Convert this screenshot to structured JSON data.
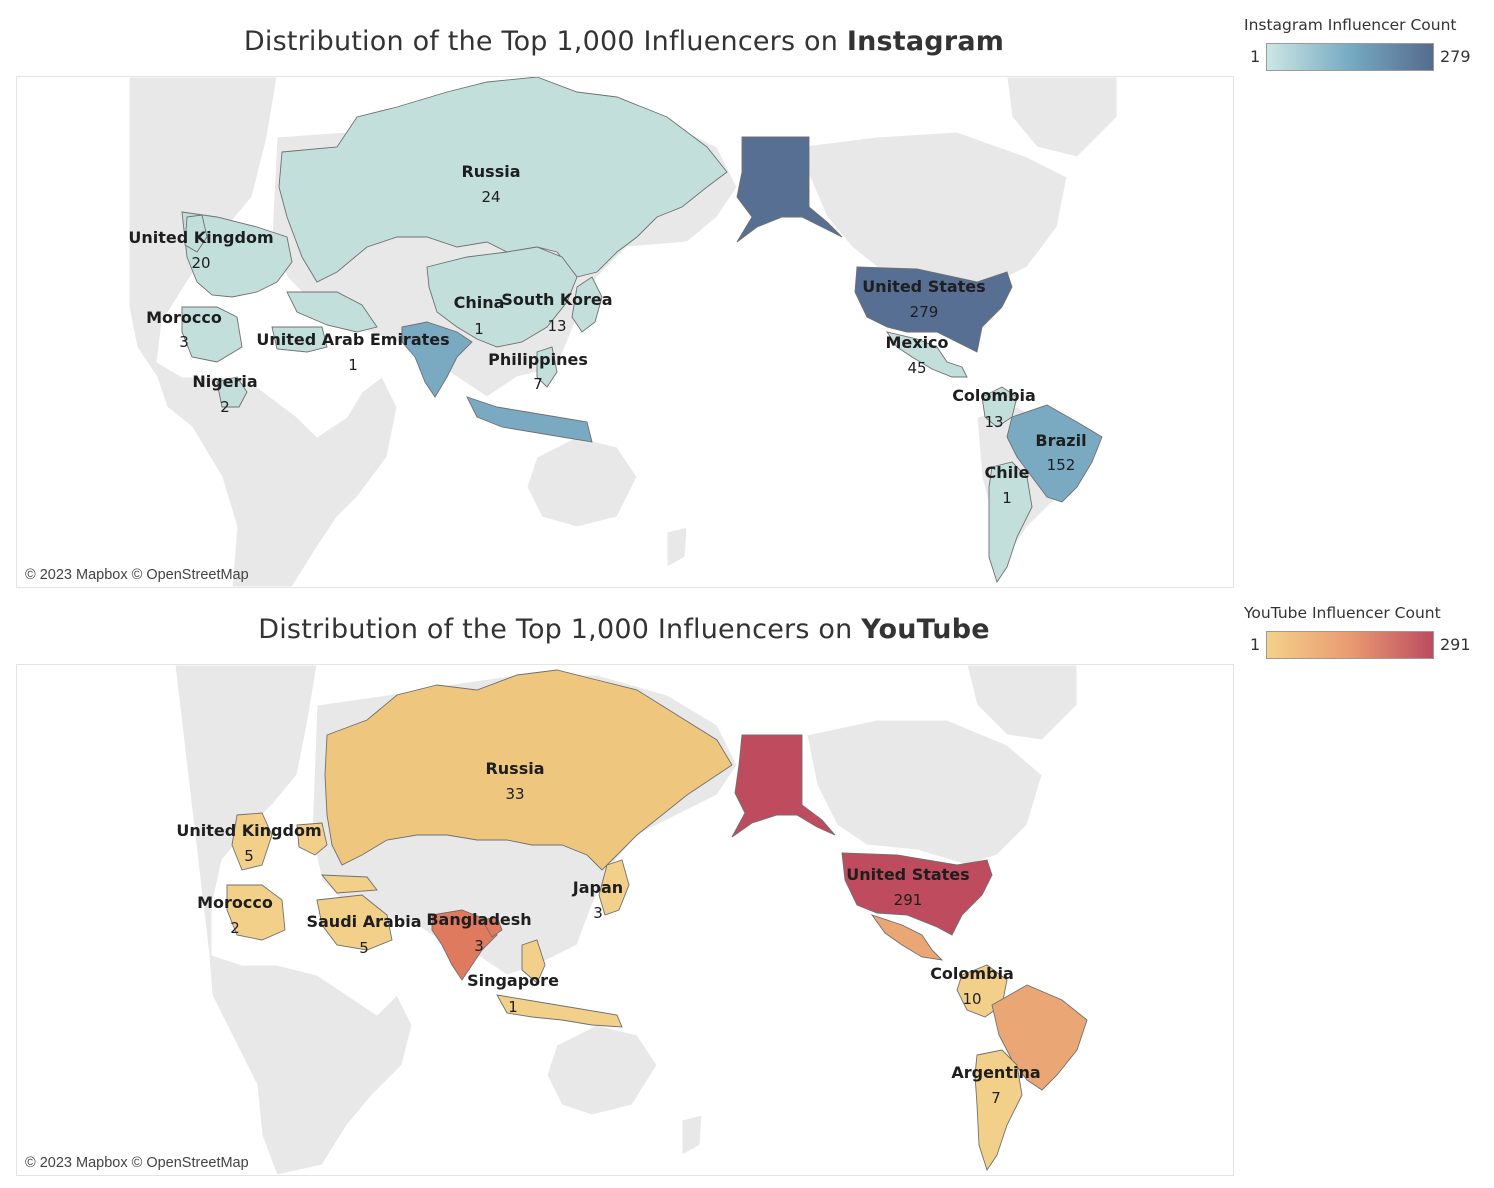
{
  "panels": [
    {
      "title_prefix": "Distribution of the Top 1,000 Influencers on ",
      "title_bold": "Instagram",
      "attribution": "© 2023 Mapbox  © OpenStreetMap",
      "legend": {
        "title": "Instagram Influencer Count",
        "min": "1",
        "max": "279",
        "color_low": "#cde6e3",
        "color_mid": "#76aac3",
        "color_high": "#556b8e"
      },
      "labels": [
        {
          "name": "Russia",
          "value": "24"
        },
        {
          "name": "United Kingdom",
          "value": "20"
        },
        {
          "name": "Morocco",
          "value": "3"
        },
        {
          "name": "United Arab Emirates",
          "value": "1"
        },
        {
          "name": "Nigeria",
          "value": "2"
        },
        {
          "name": "China",
          "value": "1"
        },
        {
          "name": "South Korea",
          "value": "13"
        },
        {
          "name": "Philippines",
          "value": "7"
        },
        {
          "name": "United States",
          "value": "279"
        },
        {
          "name": "Mexico",
          "value": "45"
        },
        {
          "name": "Colombia",
          "value": "13"
        },
        {
          "name": "Brazil",
          "value": "152"
        },
        {
          "name": "Chile",
          "value": "1"
        }
      ]
    },
    {
      "title_prefix": "Distribution of the Top 1,000 Influencers on ",
      "title_bold": "YouTube",
      "attribution": "© 2023 Mapbox  © OpenStreetMap",
      "legend": {
        "title": "YouTube Influencer Count",
        "min": "1",
        "max": "291",
        "color_low": "#f3d28a",
        "color_mid": "#e99b72",
        "color_high": "#bd4b5f"
      },
      "labels": [
        {
          "name": "Russia",
          "value": "33"
        },
        {
          "name": "United Kingdom",
          "value": "5"
        },
        {
          "name": "Morocco",
          "value": "2"
        },
        {
          "name": "Saudi Arabia",
          "value": "5"
        },
        {
          "name": "Bangladesh",
          "value": "3"
        },
        {
          "name": "Japan",
          "value": "3"
        },
        {
          "name": "Singapore",
          "value": "1"
        },
        {
          "name": "United States",
          "value": "291"
        },
        {
          "name": "Colombia",
          "value": "10"
        },
        {
          "name": "Argentina",
          "value": "7"
        }
      ]
    }
  ],
  "colors": {
    "land": "#e8e8e8",
    "water": "#ffffff",
    "border": "#707070",
    "ig_light": "#c2dfdb",
    "ig_mid": "#7aaac2",
    "ig_dark": "#566f93",
    "yt_light": "#f2d08a",
    "yt_mid": "#eba675",
    "yt_orange": "#e07a5f",
    "yt_dark": "#bf4c5e"
  }
}
